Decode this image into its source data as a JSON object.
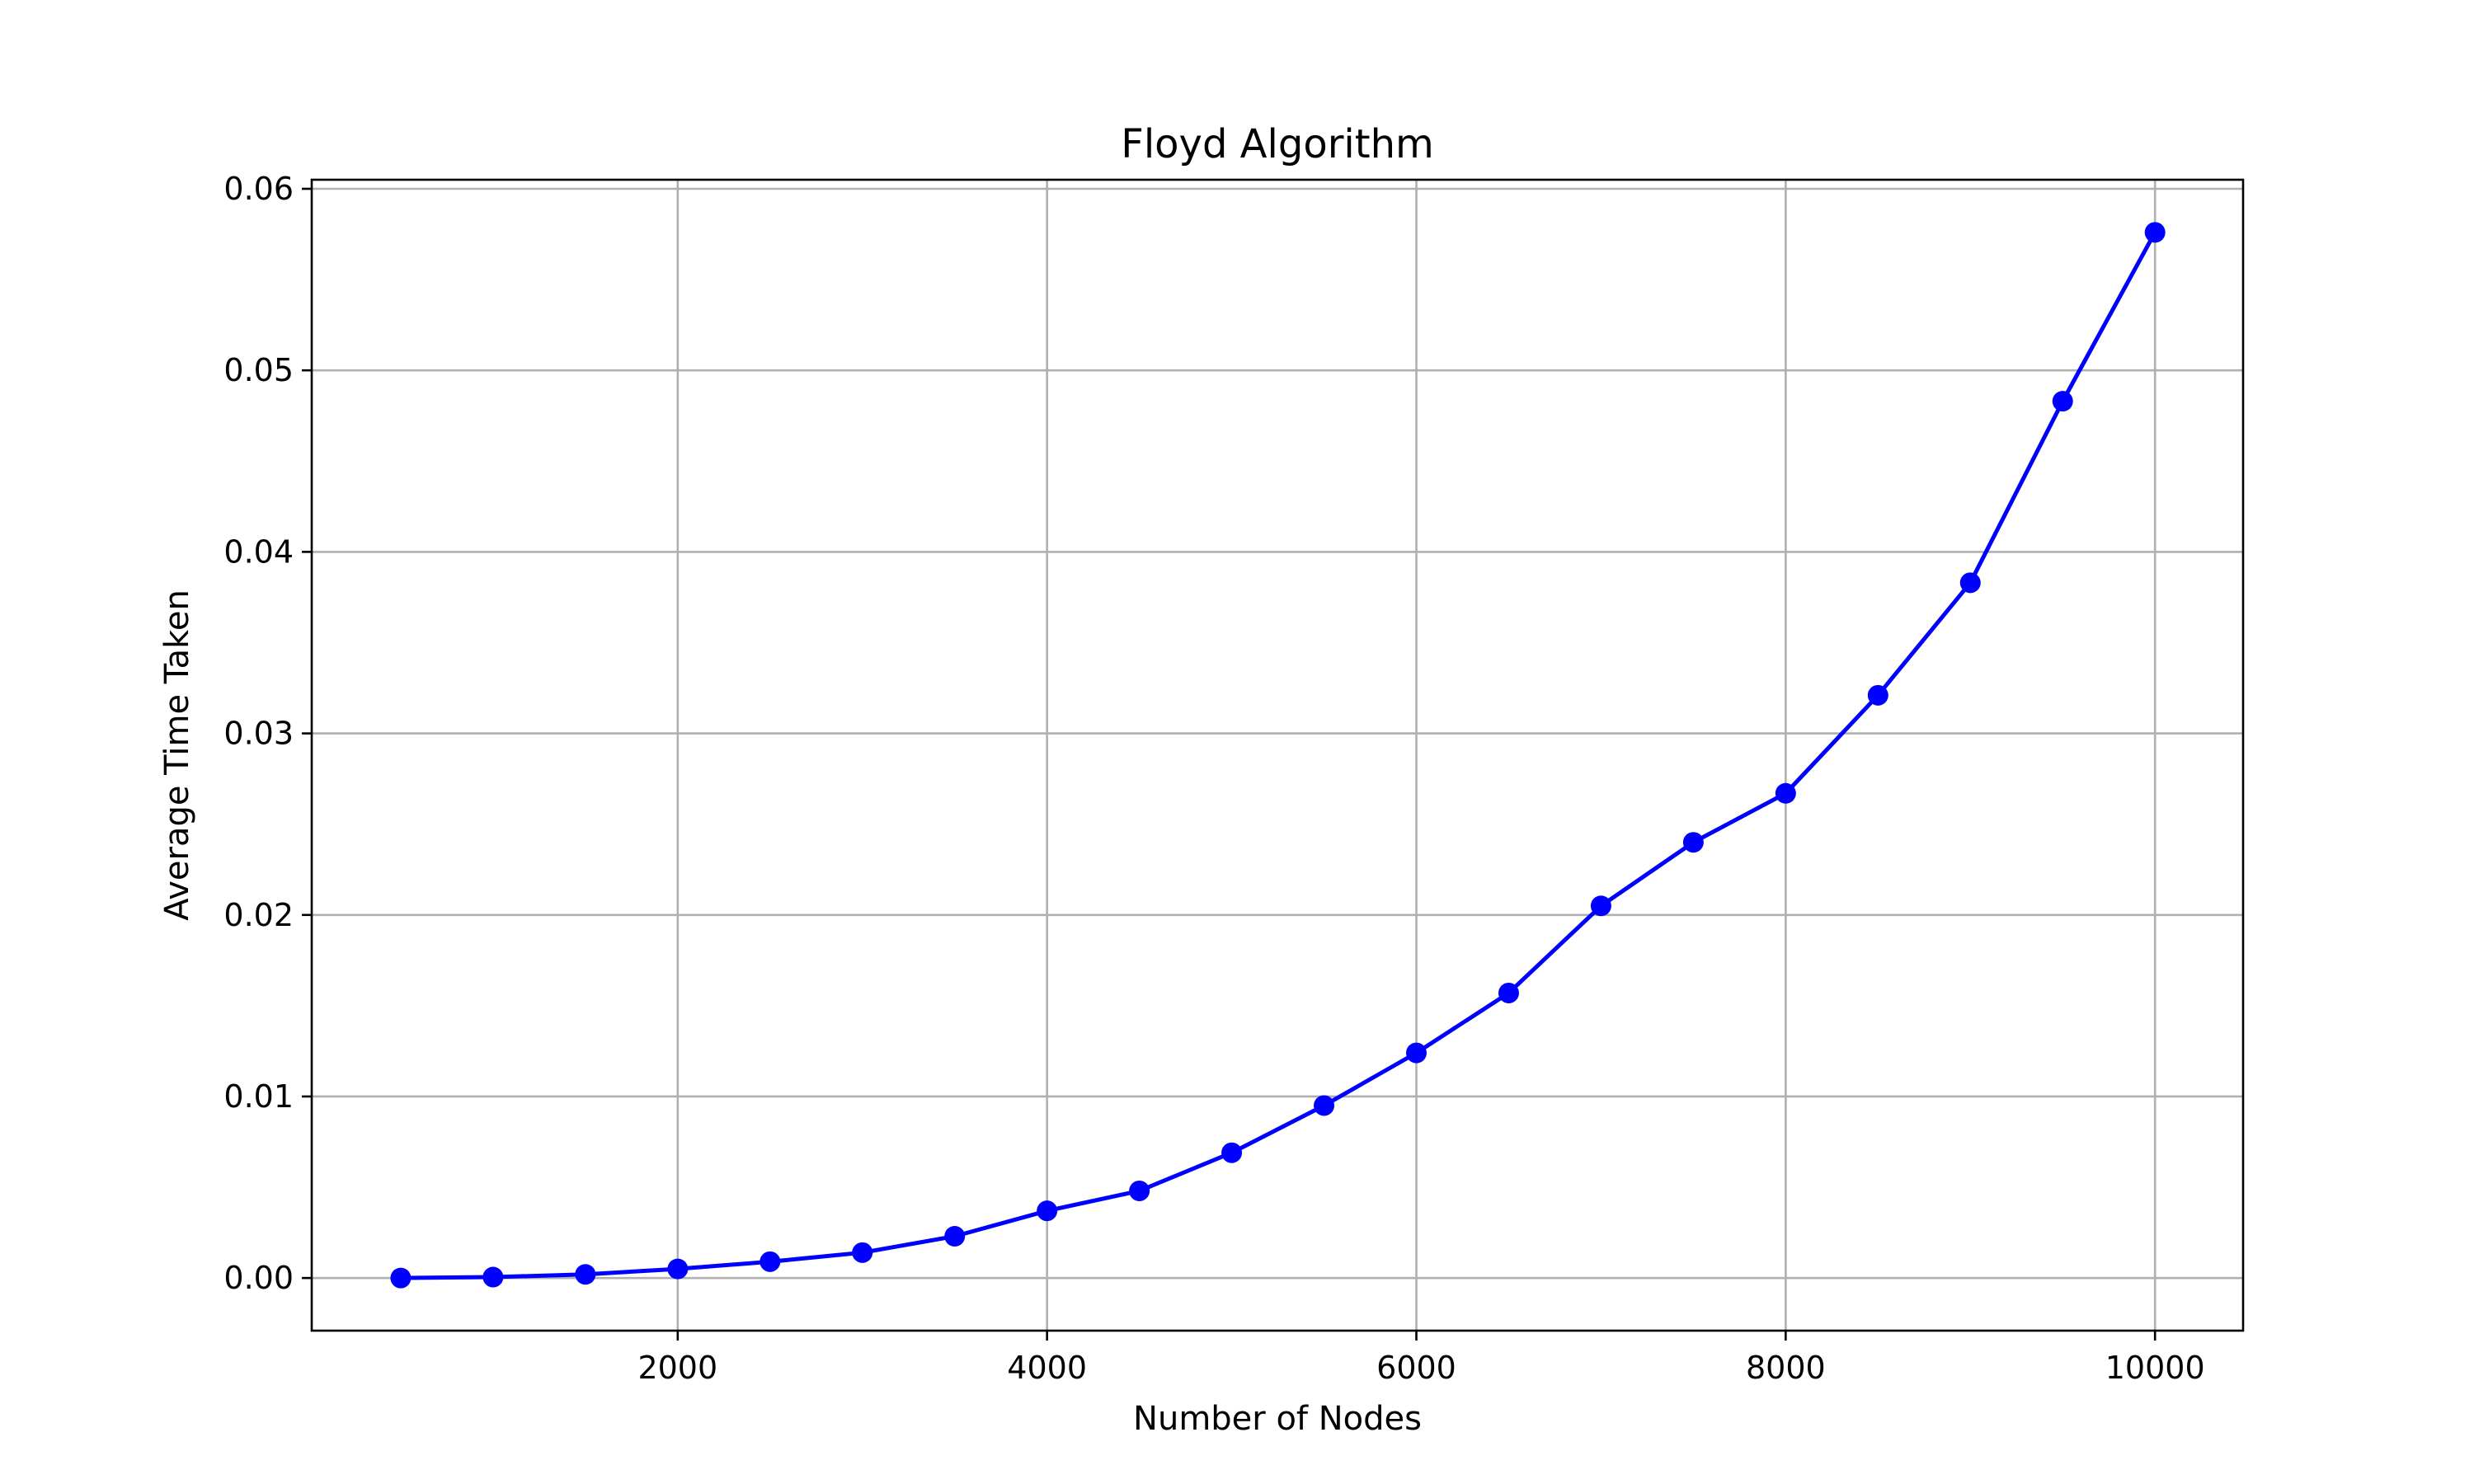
{
  "chart_data": {
    "type": "line",
    "title": "Floyd Algorithm",
    "xlabel": "Number of Nodes",
    "ylabel": "Average Time Taken",
    "xlim": [
      18,
      10477
    ],
    "ylim": [
      -0.0029,
      0.0605
    ],
    "grid": true,
    "x_ticks": [
      2000,
      4000,
      6000,
      8000,
      10000
    ],
    "x_tick_labels": [
      "2000",
      "4000",
      "6000",
      "8000",
      "10000"
    ],
    "y_ticks": [
      0.0,
      0.01,
      0.02,
      0.03,
      0.04,
      0.05,
      0.06
    ],
    "y_tick_labels": [
      "0.00",
      "0.01",
      "0.02",
      "0.03",
      "0.04",
      "0.05",
      "0.06"
    ],
    "series": [
      {
        "color": "#0000ff",
        "marker": "circle",
        "x": [
          500,
          1000,
          1500,
          2000,
          2500,
          3000,
          3500,
          4000,
          4500,
          5000,
          5500,
          6000,
          6500,
          7000,
          7500,
          8000,
          8500,
          9000,
          9500,
          10000
        ],
        "y": [
          0.0,
          5e-05,
          0.0002,
          0.0005,
          0.0009,
          0.0014,
          0.0023,
          0.0037,
          0.0048,
          0.0069,
          0.0095,
          0.0124,
          0.0157,
          0.0205,
          0.024,
          0.0267,
          0.0321,
          0.0383,
          0.0483,
          0.0576
        ]
      }
    ]
  }
}
